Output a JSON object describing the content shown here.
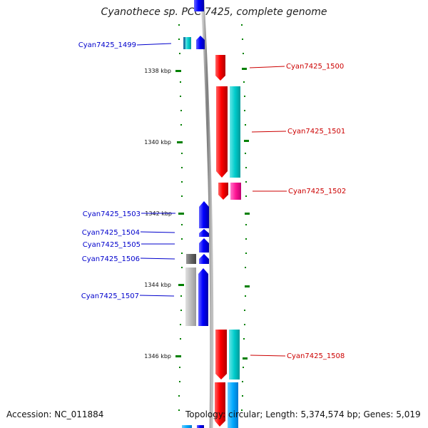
{
  "title": "Cyanothece sp. PCC 7425, complete genome",
  "footer": {
    "accession": "Accession: NC_011884",
    "topology": "Topology: circular; Length: 5,374,574 bp; Genes: 5,019"
  },
  "colors": {
    "minus_strand_label": "#0000cc",
    "plus_strand_label": "#cc0000",
    "axis_tick": "#008000",
    "backbone": "#8c8c8c"
  },
  "scale_marks": [
    "1338 kbp",
    "1340 kbp",
    "1342 kbp",
    "1344 kbp",
    "1346 kbp"
  ],
  "left_labels": [
    "Cyan7425_1499",
    "Cyan7425_1503",
    "Cyan7425_1504",
    "Cyan7425_1505",
    "Cyan7425_1506",
    "Cyan7425_1507"
  ],
  "right_labels": [
    "Cyan7425_1500",
    "Cyan7425_1501",
    "Cyan7425_1502",
    "Cyan7425_1508"
  ]
}
